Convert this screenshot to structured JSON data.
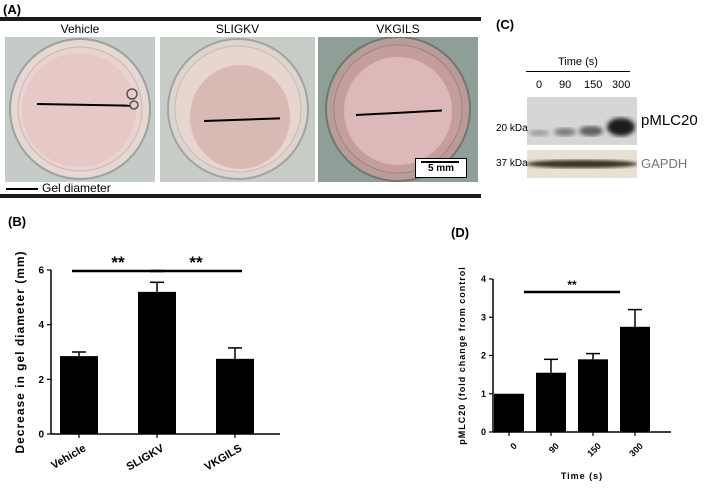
{
  "figure": {
    "panels": {
      "a": {
        "label": "(A)",
        "images": [
          {
            "caption": "Vehicle"
          },
          {
            "caption": "SLIGKV"
          },
          {
            "caption": "VKGILS"
          }
        ],
        "legend_text": "Gel diameter",
        "scale_bar_text": "5 mm"
      },
      "b": {
        "label": "(B)"
      },
      "c": {
        "label": "(C)",
        "time_header": "Time (s)",
        "time_points": [
          "0",
          "90",
          "150",
          "300"
        ],
        "bands": [
          {
            "mw": "20 kDa",
            "name": "pMLC20"
          },
          {
            "mw": "37 kDa",
            "name": "GAPDH"
          }
        ]
      },
      "d": {
        "label": "(D)"
      }
    }
  },
  "chart_data": [
    {
      "type": "bar",
      "panel": "B",
      "categories": [
        "Vehicle",
        "SLIGKV",
        "VKGILS"
      ],
      "values": [
        2.85,
        5.2,
        2.75
      ],
      "errors": [
        0.15,
        0.35,
        0.4
      ],
      "ylabel": "Decrease in gel diameter (mm)",
      "xlabel": "",
      "ylim": [
        0,
        6
      ],
      "yticks": [
        "0",
        "2",
        "4",
        "6"
      ],
      "significance": [
        {
          "from": "Vehicle",
          "to": "SLIGKV",
          "label": "**"
        },
        {
          "from": "SLIGKV",
          "to": "VKGILS",
          "label": "**"
        }
      ],
      "colors": {
        "bar": "#000000"
      }
    },
    {
      "type": "bar",
      "panel": "D",
      "categories": [
        "0",
        "90",
        "150",
        "300"
      ],
      "values": [
        1.0,
        1.55,
        1.9,
        2.75
      ],
      "errors": [
        0.0,
        0.35,
        0.15,
        0.45
      ],
      "ylabel": "pMLC20 (fold change from control",
      "xlabel": "Time (s)",
      "ylim": [
        0,
        4
      ],
      "yticks": [
        "0",
        "1",
        "2",
        "3",
        "4"
      ],
      "significance": [
        {
          "from": "0",
          "to": "300",
          "label": "**"
        }
      ],
      "colors": {
        "bar": "#000000"
      }
    }
  ]
}
